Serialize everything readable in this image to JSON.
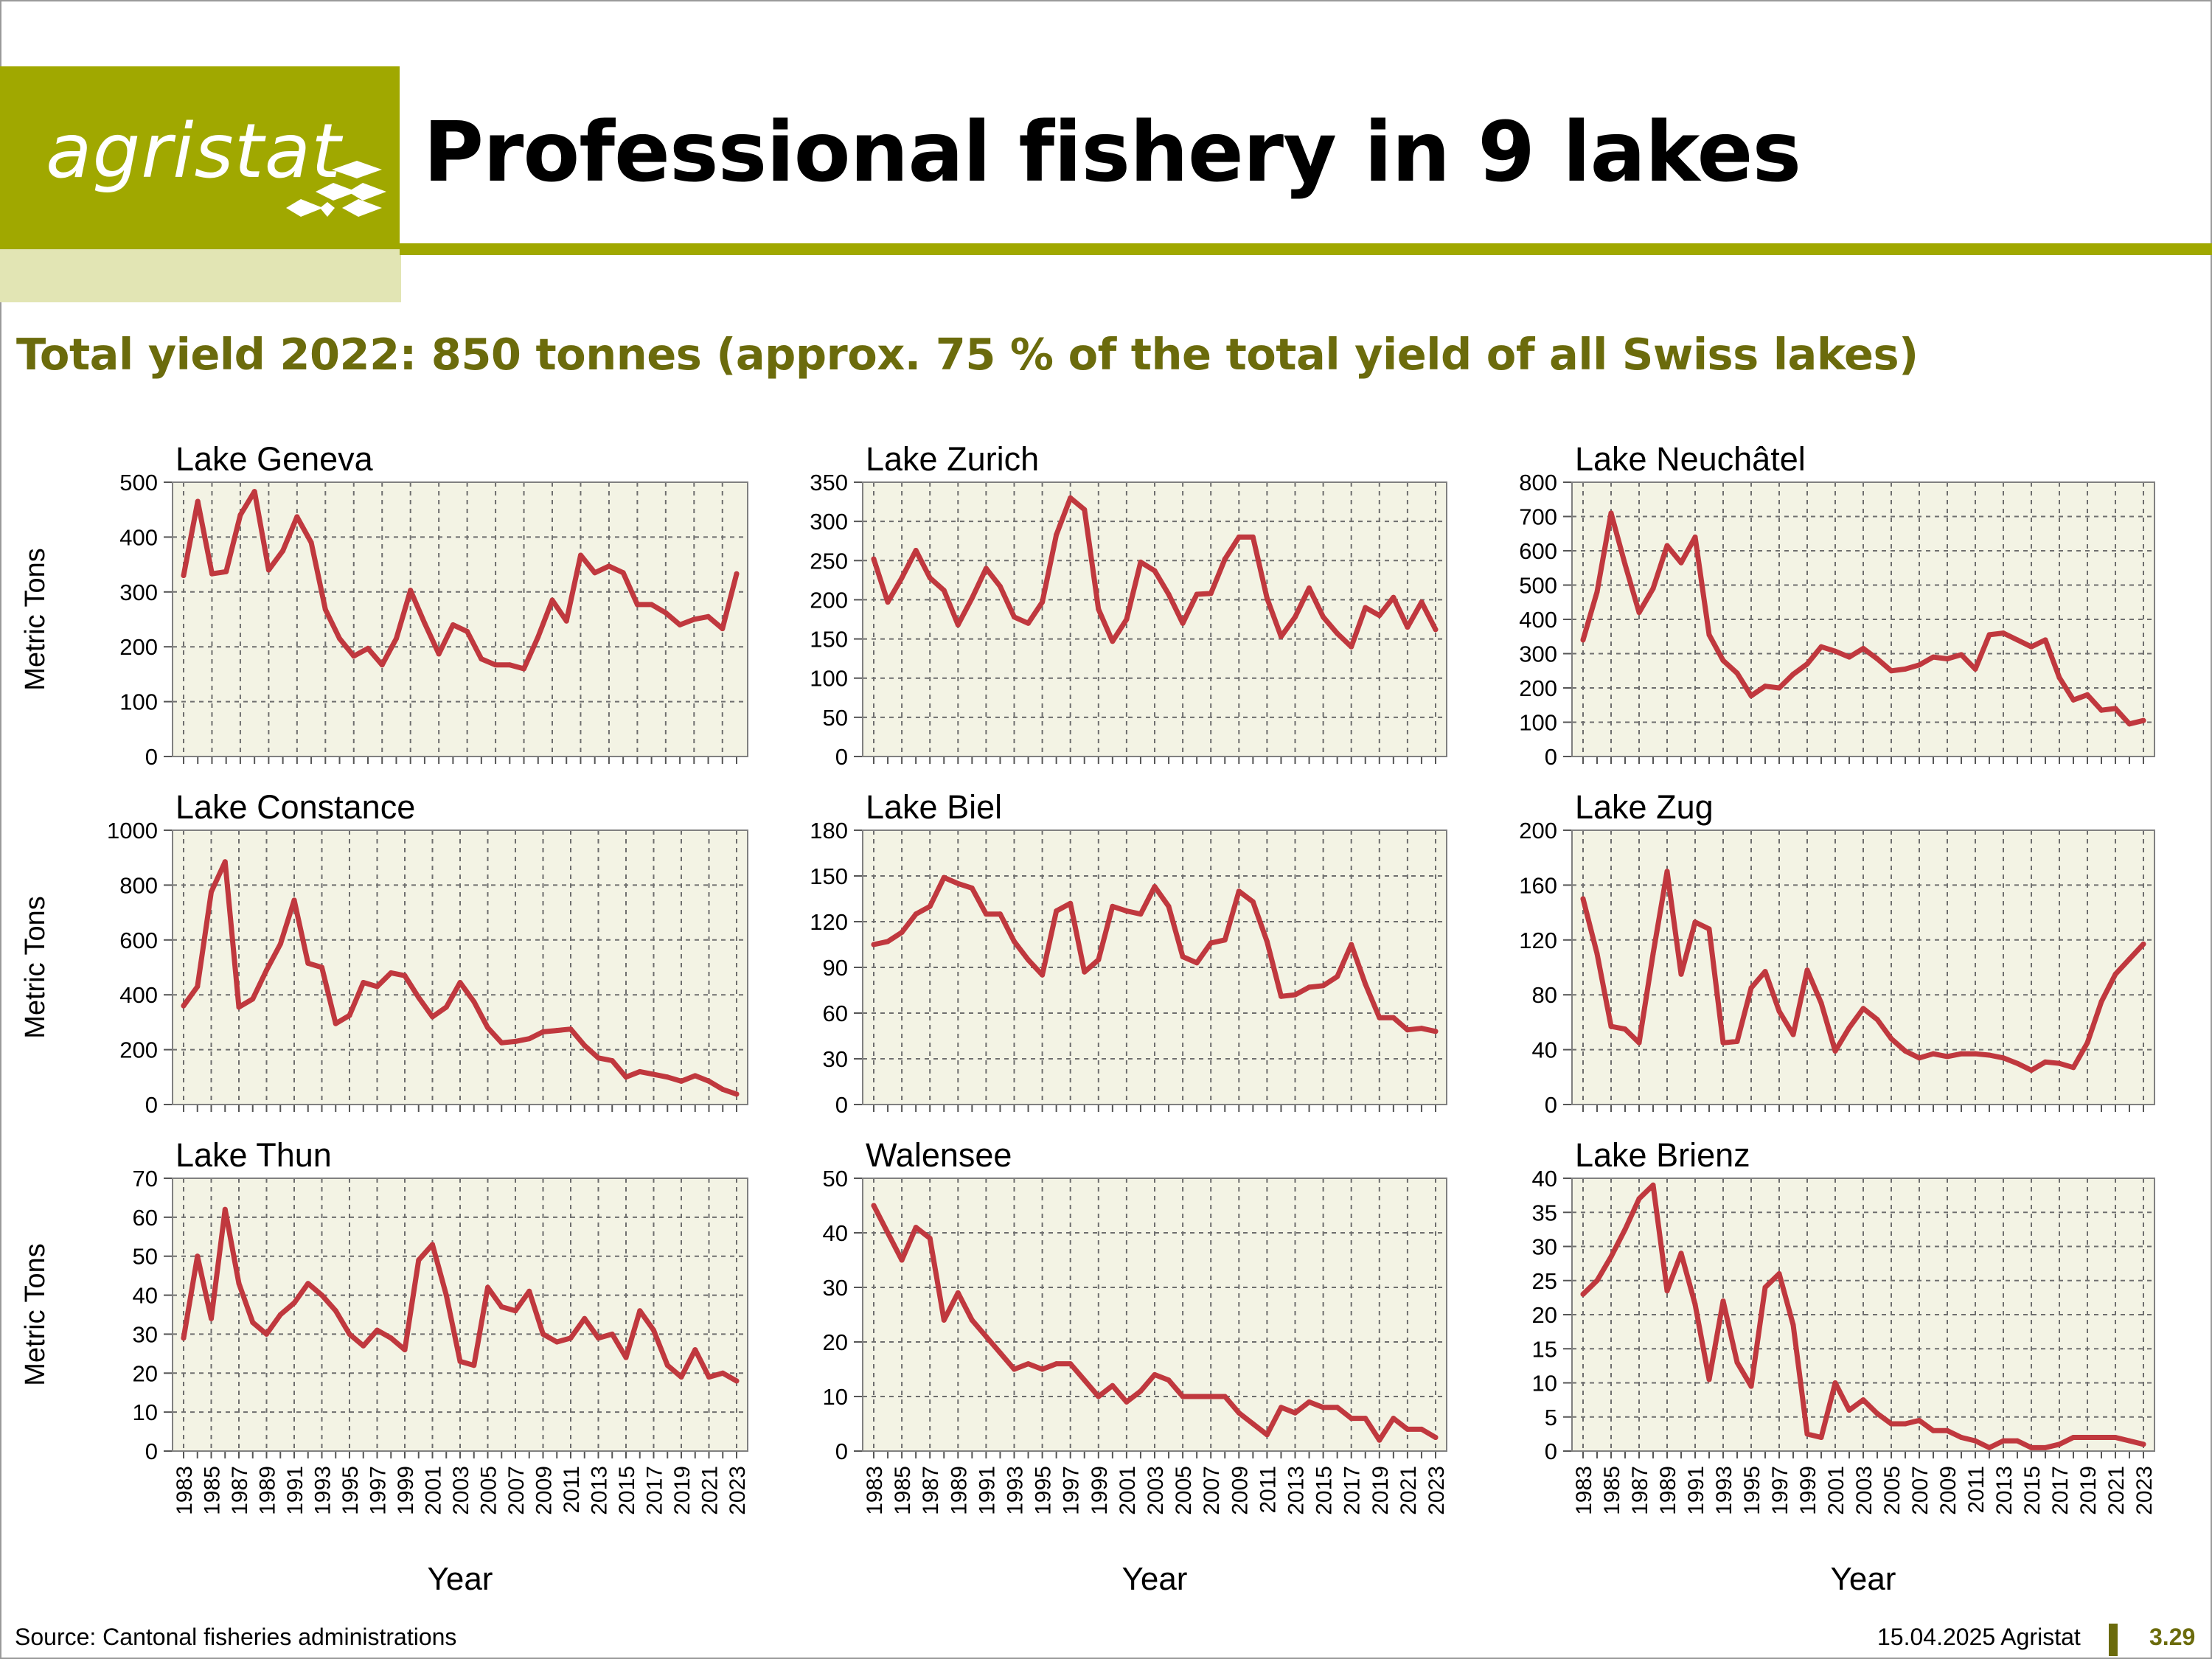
{
  "logo": {
    "text": "agristat"
  },
  "header": {
    "title": "Professional fishery in 9 lakes",
    "subtitle": "Total yield 2022: 850 tonnes (approx. 75 % of the total yield of all Swiss lakes)"
  },
  "footer": {
    "source": "Source: Cantonal fisheries administrations",
    "date": "15.04.2025 Agristat",
    "page": "3.29"
  },
  "colors": {
    "line": "#c0383e",
    "plot_bg": "#f3f3e4",
    "accent": "#a0a800",
    "subtitle": "#6b6b0c"
  },
  "chart_data": [
    {
      "type": "line",
      "title": "Lake Geneva",
      "ylabel": "Metric Tons",
      "xlabel": "",
      "ylim": [
        0,
        500
      ],
      "yticks": [
        0,
        100,
        200,
        300,
        400,
        500
      ],
      "x_start": 1983,
      "x_end": 2022,
      "grid": true,
      "xticks_shown": false,
      "values": [
        330,
        465,
        333,
        337,
        440,
        483,
        340,
        375,
        437,
        390,
        268,
        215,
        183,
        197,
        167,
        215,
        303,
        243,
        187,
        240,
        228,
        178,
        167,
        167,
        160,
        218,
        285,
        247,
        367,
        335,
        347,
        335,
        277,
        277,
        262,
        240,
        250,
        255,
        233,
        333
      ]
    },
    {
      "type": "line",
      "title": "Lake Zurich",
      "ylabel": "",
      "xlabel": "",
      "ylim": [
        0,
        350
      ],
      "yticks": [
        0,
        50,
        100,
        150,
        200,
        250,
        300,
        350
      ],
      "x_start": 1983,
      "x_end": 2023,
      "grid": true,
      "xticks_shown": false,
      "values": [
        252,
        197,
        228,
        263,
        228,
        212,
        168,
        202,
        240,
        217,
        178,
        170,
        197,
        283,
        330,
        315,
        188,
        147,
        175,
        248,
        237,
        207,
        170,
        207,
        208,
        252,
        280,
        280,
        202,
        153,
        178,
        215,
        178,
        157,
        140,
        190,
        180,
        203,
        165,
        197,
        162
      ]
    },
    {
      "type": "line",
      "title": "Lake Neuchâtel",
      "ylabel": "",
      "xlabel": "",
      "ylim": [
        0,
        800
      ],
      "yticks": [
        0,
        100,
        200,
        300,
        400,
        500,
        600,
        700,
        800
      ],
      "x_start": 1983,
      "x_end": 2023,
      "grid": true,
      "xticks_shown": false,
      "values": [
        340,
        480,
        710,
        560,
        420,
        490,
        615,
        565,
        640,
        355,
        280,
        243,
        177,
        205,
        200,
        240,
        270,
        320,
        307,
        290,
        315,
        285,
        250,
        255,
        267,
        290,
        285,
        297,
        255,
        355,
        360,
        340,
        320,
        340,
        230,
        165,
        180,
        135,
        140,
        95,
        105
      ]
    },
    {
      "type": "line",
      "title": "Lake Constance",
      "ylabel": "Metric Tons",
      "xlabel": "",
      "ylim": [
        0,
        1000
      ],
      "yticks": [
        0,
        200,
        400,
        600,
        800,
        1000
      ],
      "x_start": 1983,
      "x_end": 2023,
      "grid": true,
      "xticks_shown": false,
      "values": [
        360,
        430,
        775,
        885,
        355,
        385,
        490,
        585,
        745,
        515,
        500,
        295,
        325,
        445,
        430,
        480,
        470,
        390,
        320,
        355,
        445,
        375,
        280,
        225,
        230,
        240,
        265,
        270,
        275,
        215,
        170,
        160,
        100,
        120,
        110,
        100,
        85,
        105,
        85,
        55,
        38
      ]
    },
    {
      "type": "line",
      "title": "Lake Biel",
      "ylabel": "",
      "xlabel": "",
      "ylim": [
        0,
        180
      ],
      "yticks": [
        0,
        30,
        60,
        90,
        120,
        150,
        180
      ],
      "x_start": 1983,
      "x_end": 2023,
      "grid": true,
      "xticks_shown": false,
      "values": [
        105,
        107,
        113,
        125,
        130,
        149,
        145,
        142,
        125,
        125,
        107,
        95,
        85,
        127,
        132,
        87,
        95,
        130,
        127,
        125,
        143,
        130,
        97,
        93,
        106,
        108,
        140,
        133,
        107,
        71,
        72,
        77,
        78,
        84,
        105,
        79,
        57,
        57,
        49,
        50,
        48
      ]
    },
    {
      "type": "line",
      "title": "Lake Zug",
      "ylabel": "",
      "xlabel": "",
      "ylim": [
        0,
        200
      ],
      "yticks": [
        0,
        40,
        80,
        120,
        160,
        200
      ],
      "x_start": 1983,
      "x_end": 2023,
      "grid": true,
      "xticks_shown": false,
      "values": [
        150,
        110,
        57,
        55,
        45,
        110,
        170,
        95,
        133,
        128,
        45,
        46,
        85,
        97,
        68,
        51,
        98,
        74,
        39,
        56,
        70,
        62,
        48,
        39,
        34,
        37,
        35,
        37,
        37,
        36,
        34,
        30,
        25,
        31,
        30,
        27,
        45,
        75,
        95,
        106,
        117
      ]
    },
    {
      "type": "line",
      "title": "Lake Thun",
      "ylabel": "Metric Tons",
      "xlabel": "Year",
      "ylim": [
        0,
        70
      ],
      "yticks": [
        0,
        10,
        20,
        30,
        40,
        50,
        60,
        70
      ],
      "x_start": 1983,
      "x_end": 2023,
      "grid": true,
      "xticks_shown": true,
      "values": [
        29,
        50,
        34,
        62,
        43,
        33,
        30,
        35,
        38,
        43,
        40,
        36,
        30,
        27,
        31,
        29,
        26,
        49,
        53,
        40,
        23,
        22,
        42,
        37,
        36,
        41,
        30,
        28,
        29,
        34,
        29,
        30,
        24,
        36,
        31,
        22,
        19,
        26,
        19,
        20,
        18
      ]
    },
    {
      "type": "line",
      "title": "Walensee",
      "ylabel": "",
      "xlabel": "Year",
      "ylim": [
        0,
        50
      ],
      "yticks": [
        0,
        10,
        20,
        30,
        40,
        50
      ],
      "x_start": 1983,
      "x_end": 2023,
      "grid": true,
      "xticks_shown": true,
      "values": [
        45,
        40,
        35,
        41,
        39,
        24,
        29,
        24,
        21,
        18,
        15,
        16,
        15,
        16,
        16,
        13,
        10,
        12,
        9,
        11,
        14,
        13,
        10,
        10,
        10,
        10,
        7,
        5,
        3,
        8,
        7,
        9,
        8,
        8,
        6,
        6,
        2,
        6,
        4,
        4,
        2.5
      ]
    },
    {
      "type": "line",
      "title": "Lake Brienz",
      "ylabel": "",
      "xlabel": "Year",
      "ylim": [
        0,
        40
      ],
      "yticks": [
        0,
        5,
        10,
        15,
        20,
        25,
        30,
        35,
        40
      ],
      "x_start": 1983,
      "x_end": 2023,
      "grid": true,
      "xticks_shown": true,
      "values": [
        23,
        25,
        28.5,
        32.5,
        37,
        39,
        23.5,
        29,
        21.5,
        10.5,
        22,
        13,
        9.5,
        24,
        26,
        18.5,
        2.5,
        2,
        10,
        6,
        7.5,
        5.5,
        4,
        4,
        4.5,
        3,
        3,
        2,
        1.5,
        0.5,
        1.5,
        1.5,
        0.5,
        0.5,
        1,
        2,
        2,
        2,
        2,
        1.5,
        1
      ]
    }
  ]
}
